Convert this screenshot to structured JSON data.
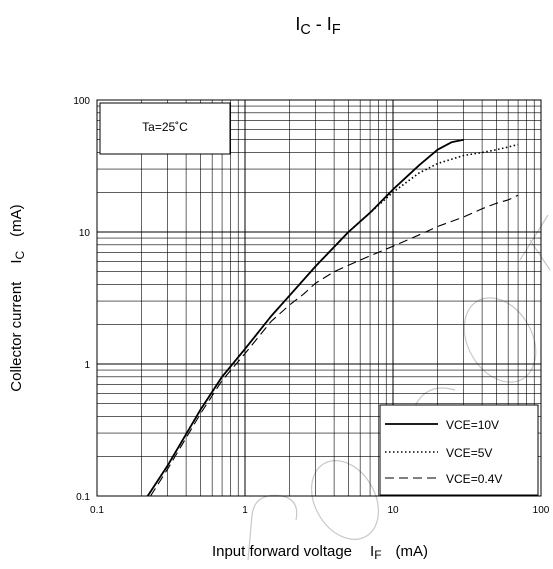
{
  "chart_data": {
    "type": "line",
    "title": "IC - IF",
    "title_main_1": "I",
    "title_sub_1": "C",
    "title_sep": " - ",
    "title_main_2": "I",
    "title_sub_2": "F",
    "xlabel": "Input forward voltage IF (mA)",
    "xlabel_prefix": "Input forward voltage",
    "xlabel_symbol": "I",
    "xlabel_symbol_sub": "F",
    "xlabel_unit": "(mA)",
    "ylabel": "Collector current IC (mA)",
    "ylabel_prefix": "Collector current",
    "ylabel_symbol": "I",
    "ylabel_symbol_sub": "C",
    "ylabel_unit": "(mA)",
    "xscale": "log",
    "yscale": "log",
    "xlim": [
      0.1,
      100
    ],
    "ylim": [
      0.1,
      100
    ],
    "x_tick_labels": [
      "0.1",
      "1",
      "10",
      "100"
    ],
    "y_tick_labels": [
      "0.1",
      "1",
      "10",
      "100"
    ],
    "grid": true,
    "legend_position": "bottom-right",
    "annotation": "Ta=25˚C",
    "series": [
      {
        "name": "VCE=10V",
        "name_main": "V",
        "name_sub": "CE",
        "name_value": "=10V",
        "style": "solid",
        "x": [
          0.22,
          0.3,
          0.5,
          0.7,
          1,
          1.5,
          2,
          3,
          5,
          7,
          10,
          15,
          20,
          25,
          30
        ],
        "y": [
          0.1,
          0.17,
          0.45,
          0.8,
          1.3,
          2.3,
          3.3,
          5.5,
          10,
          14,
          21,
          32,
          42,
          48,
          50
        ]
      },
      {
        "name": "VCE=5V",
        "name_main": "V",
        "name_sub": "CE",
        "name_value": "=5V",
        "style": "dotted",
        "x": [
          0.22,
          0.3,
          0.5,
          0.7,
          1,
          1.5,
          2,
          3,
          5,
          7,
          10,
          15,
          20,
          30,
          40,
          50,
          60,
          70
        ],
        "y": [
          0.1,
          0.17,
          0.45,
          0.8,
          1.3,
          2.3,
          3.3,
          5.5,
          10,
          14,
          20,
          28,
          33,
          38,
          40,
          42,
          44,
          46
        ]
      },
      {
        "name": "VCE=0.4V",
        "name_main": "V",
        "name_sub": "CE",
        "name_value": "=0.4V",
        "style": "dashed",
        "x": [
          0.23,
          0.3,
          0.5,
          0.7,
          1,
          1.5,
          2,
          2.5,
          3,
          4,
          5,
          7,
          10,
          15,
          20,
          30,
          40,
          50,
          60,
          70
        ],
        "y": [
          0.1,
          0.16,
          0.42,
          0.75,
          1.2,
          2.1,
          2.8,
          3.4,
          4.1,
          5.0,
          5.6,
          6.6,
          7.8,
          9.5,
          11,
          13,
          15,
          16.5,
          17.5,
          19
        ]
      }
    ]
  }
}
